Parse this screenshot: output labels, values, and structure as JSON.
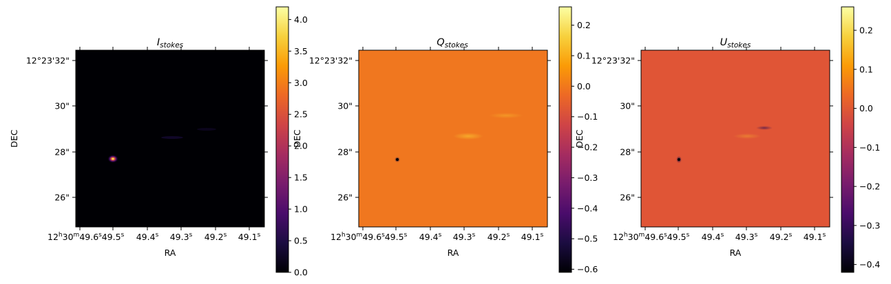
{
  "colormap_stops": [
    "#000004",
    "#1b0c41",
    "#4a0c6b",
    "#781c6d",
    "#a52c60",
    "#cf4446",
    "#ed6925",
    "#fb9b06",
    "#f7d13d",
    "#fcffa4"
  ],
  "chart_data": [
    {
      "type": "heatmap",
      "title": "I",
      "title_sub": "stokes",
      "xlabel": "RA",
      "ylabel": "DEC",
      "field_color": "#000004",
      "x_ticks": [
        "12h30m49.6s",
        "49.5s",
        "49.4s",
        "49.3s",
        "49.2s",
        "49.1s"
      ],
      "y_ticks": [
        "12°23'32\"",
        "30\"",
        "28\"",
        "26\""
      ],
      "colorbar_ticks": [
        "4.0",
        "3.5",
        "3.0",
        "2.5",
        "2.0",
        "1.5",
        "1.0",
        "0.5",
        "0.0"
      ],
      "colorbar_values": [
        4.0,
        3.5,
        3.0,
        2.5,
        2.0,
        1.5,
        1.0,
        0.5,
        0.0
      ],
      "vmin": 0.0,
      "vmax": 4.2
    },
    {
      "type": "heatmap",
      "title": "Q",
      "title_sub": "stokes",
      "xlabel": "RA",
      "ylabel": "DEC",
      "field_color": "#f0771f",
      "x_ticks": [
        "12h30m49.6s",
        "49.5s",
        "49.4s",
        "49.3s",
        "49.2s",
        "49.1s"
      ],
      "y_ticks": [
        "12°23'32\"",
        "30\"",
        "28\"",
        "26\""
      ],
      "colorbar_ticks": [
        "0.2",
        "0.1",
        "0.0",
        "−0.1",
        "−0.2",
        "−0.3",
        "−0.4",
        "−0.5",
        "−0.6"
      ],
      "colorbar_values": [
        0.2,
        0.1,
        0.0,
        -0.1,
        -0.2,
        -0.3,
        -0.4,
        -0.5,
        -0.6
      ],
      "vmin": -0.61,
      "vmax": 0.26
    },
    {
      "type": "heatmap",
      "title": "U",
      "title_sub": "stokes",
      "xlabel": "RA",
      "ylabel": "DEC",
      "field_color": "#e05536",
      "x_ticks": [
        "12h30m49.6s",
        "49.5s",
        "49.4s",
        "49.3s",
        "49.2s",
        "49.1s"
      ],
      "y_ticks": [
        "12°23'32\"",
        "30\"",
        "28\"",
        "26\""
      ],
      "colorbar_ticks": [
        "0.2",
        "0.1",
        "0.0",
        "−0.1",
        "−0.2",
        "−0.3",
        "−0.4"
      ],
      "colorbar_values": [
        0.2,
        0.1,
        0.0,
        -0.1,
        -0.2,
        -0.3,
        -0.4
      ],
      "vmin": -0.42,
      "vmax": 0.26
    }
  ]
}
